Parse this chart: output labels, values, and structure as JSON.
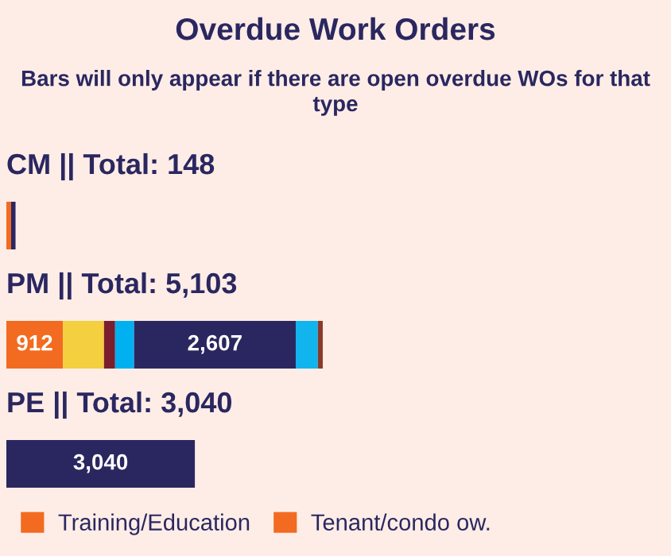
{
  "chart_data": {
    "type": "bar",
    "orientation": "horizontal",
    "stacked": true,
    "title": "Overdue Work Orders",
    "subtitle": "Bars will only appear if there are open overdue WOs for that type",
    "categories": [
      "CM || Total: 148",
      "PM || Total: 5,103",
      "PE || Total: 3,040"
    ],
    "series": [
      {
        "name": "Training/Education",
        "color": "#f26b21",
        "values": [
          null,
          912,
          null
        ],
        "value_labels": [
          null,
          "912",
          null
        ]
      },
      {
        "name": "Tenant/condo ow.",
        "color": "#f26b21",
        "values": [
          76,
          null,
          null
        ]
      },
      {
        "color": "#f4cf3f",
        "values": [
          null,
          663,
          null
        ]
      },
      {
        "color": "#7b1f2e",
        "values": [
          null,
          179,
          null
        ]
      },
      {
        "color": "#00b0f0",
        "values": [
          null,
          306,
          null
        ]
      },
      {
        "color": "#2a2760",
        "values": [
          72,
          2607,
          3040
        ],
        "value_labels": [
          null,
          "2,607",
          "3,040"
        ]
      },
      {
        "color": "#12b4ee",
        "values": [
          null,
          357,
          null
        ]
      },
      {
        "color": "#8b3a2a",
        "values": [
          null,
          79,
          null
        ]
      }
    ],
    "legend": "bottom"
  }
}
